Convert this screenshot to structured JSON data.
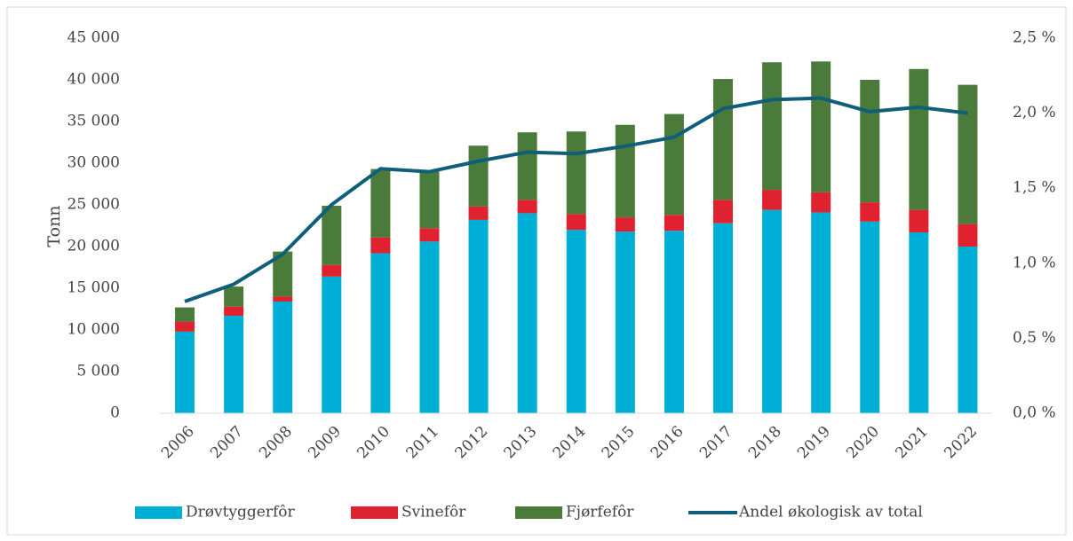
{
  "chart_data": {
    "type": "bar",
    "y_label": "Tonn",
    "categories": [
      "2006",
      "2007",
      "2008",
      "2009",
      "2010",
      "2011",
      "2012",
      "2013",
      "2014",
      "2015",
      "2016",
      "2017",
      "2018",
      "2019",
      "2020",
      "2021",
      "2022"
    ],
    "series": [
      {
        "name": "Drøvtyggerfôr",
        "color": "#00afd6",
        "values": [
          9800,
          11700,
          13400,
          16400,
          19200,
          20600,
          23200,
          24000,
          22000,
          21800,
          21900,
          22800,
          24400,
          24100,
          23000,
          21700,
          20000
        ]
      },
      {
        "name": "Svinefôr",
        "color": "#e0212f",
        "values": [
          1200,
          1100,
          600,
          1400,
          1900,
          1600,
          1600,
          1600,
          1900,
          1700,
          1900,
          2800,
          2400,
          2400,
          2300,
          2700,
          2700
        ]
      },
      {
        "name": "Fjørfefôr",
        "color": "#4b7b3b",
        "values": [
          1700,
          2400,
          5400,
          7100,
          8200,
          6800,
          7300,
          8100,
          9900,
          11100,
          12100,
          14500,
          15300,
          15700,
          14700,
          16900,
          16700
        ]
      },
      {
        "name": "Andel økologisk av total",
        "color": "#0f5f7b",
        "type": "line",
        "axis": "y2",
        "values": [
          0.745,
          0.86,
          1.06,
          1.39,
          1.63,
          1.61,
          1.68,
          1.74,
          1.73,
          1.78,
          1.84,
          2.03,
          2.09,
          2.1,
          2.01,
          2.04,
          2.0
        ]
      }
    ],
    "stacked": true,
    "ylim": [
      0,
      45000
    ],
    "yticks": [
      {
        "value": 0,
        "label": "0"
      },
      {
        "value": 5000,
        "label": "5 000"
      },
      {
        "value": 10000,
        "label": "10 000"
      },
      {
        "value": 15000,
        "label": "15 000"
      },
      {
        "value": 20000,
        "label": "20 000"
      },
      {
        "value": 25000,
        "label": "25 000"
      },
      {
        "value": 30000,
        "label": "30 000"
      },
      {
        "value": 35000,
        "label": "35 000"
      },
      {
        "value": 40000,
        "label": "40 000"
      },
      {
        "value": 45000,
        "label": "45 000"
      }
    ],
    "y2lim": [
      0,
      2.5
    ],
    "y2ticks": [
      {
        "value": 0,
        "label": "0,0 %"
      },
      {
        "value": 0.5,
        "label": "0,5 %"
      },
      {
        "value": 1,
        "label": "1,0 %"
      },
      {
        "value": 1.5,
        "label": "1,5 %"
      },
      {
        "value": 2,
        "label": "2,0 %"
      },
      {
        "value": 2.5,
        "label": "2,5 %"
      }
    ],
    "legend": "bottom"
  }
}
